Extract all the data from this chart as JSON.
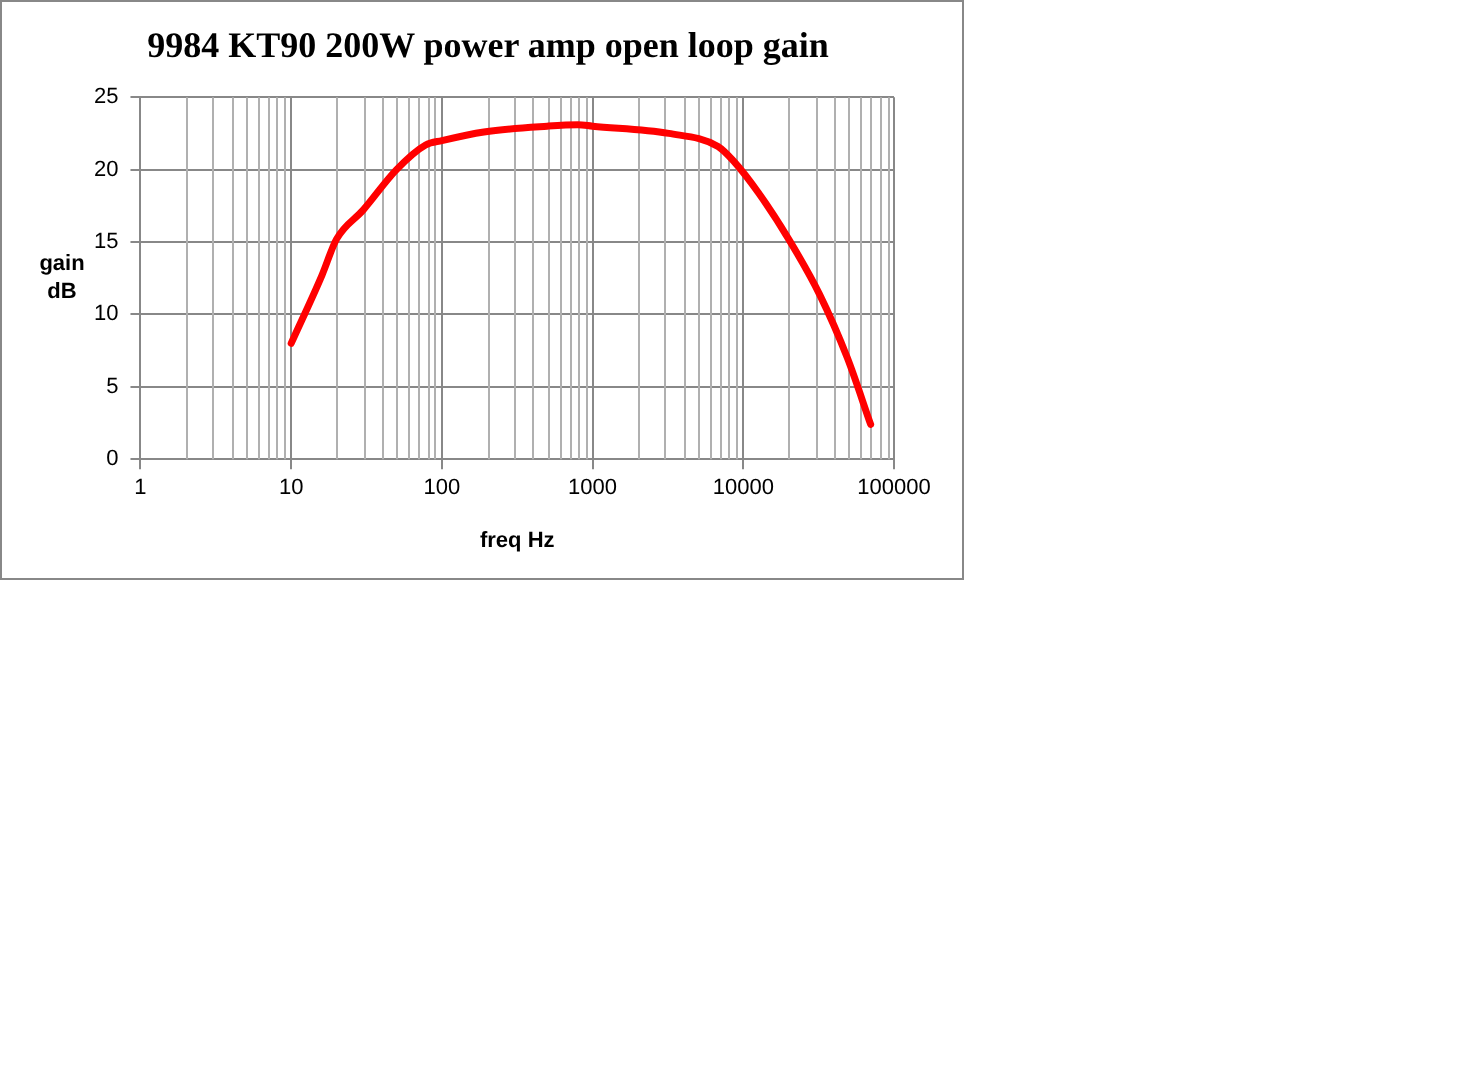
{
  "chart_data": {
    "type": "line",
    "title": "9984 KT90 200W power amp open loop gain",
    "xlabel": "freq Hz",
    "ylabel": "gain dB",
    "log": "x",
    "grid": true,
    "legend": false,
    "marker": "none",
    "line_style": "solid",
    "xlim": [
      1,
      100000
    ],
    "xticks": [
      1,
      10,
      100,
      1000,
      10000,
      100000
    ],
    "ylim": [
      0,
      25
    ],
    "yticks": [
      0,
      5,
      10,
      15,
      20,
      25
    ],
    "series": [
      {
        "color": "#ff0000",
        "x": [
          10,
          16,
          20,
          30,
          50,
          78,
          100,
          190,
          500,
          800,
          1000,
          3200,
          6800,
          8600,
          12600,
          20000,
          32000,
          49000,
          70000
        ],
        "values": [
          8,
          12.7,
          15.2,
          17.2,
          20,
          21.7,
          22,
          22.6,
          23,
          23.1,
          23,
          22.5,
          21.6,
          20.6,
          18.4,
          15.2,
          11.4,
          7,
          2.4
        ]
      }
    ]
  }
}
